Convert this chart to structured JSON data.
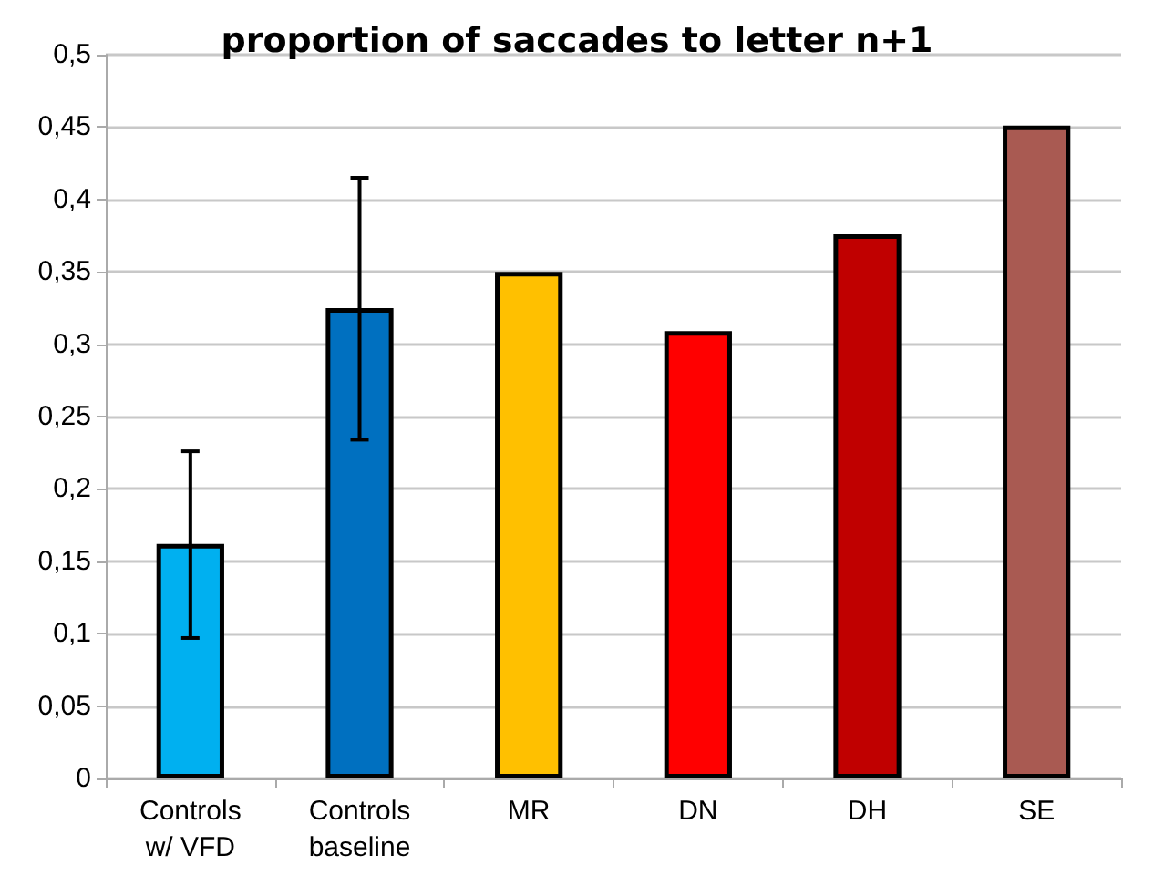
{
  "chart_data": {
    "type": "bar",
    "title": "proportion of saccades to letter n+1",
    "categories": [
      "Controls\nw/ VFD",
      "Controls\nbaseline",
      "MR",
      "DN",
      "DH",
      "SE"
    ],
    "values": [
      0.162,
      0.325,
      0.35,
      0.309,
      0.376,
      0.451
    ],
    "colors": [
      "#00b0f0",
      "#0070c0",
      "#ffc000",
      "#ff0000",
      "#c00000",
      "#a95a52"
    ],
    "errors": [
      [
        0.097,
        0.226
      ],
      [
        0.234,
        0.415
      ],
      null,
      null,
      null,
      null
    ],
    "ylim": [
      0,
      0.5
    ],
    "yticks": [
      {
        "value": 0,
        "label": "0"
      },
      {
        "value": 0.05,
        "label": "0,05"
      },
      {
        "value": 0.1,
        "label": "0,1"
      },
      {
        "value": 0.15,
        "label": "0,15"
      },
      {
        "value": 0.2,
        "label": "0,2"
      },
      {
        "value": 0.25,
        "label": "0,25"
      },
      {
        "value": 0.3,
        "label": "0,3"
      },
      {
        "value": 0.35,
        "label": "0,35"
      },
      {
        "value": 0.4,
        "label": "0,4"
      },
      {
        "value": 0.45,
        "label": "0,45"
      },
      {
        "value": 0.5,
        "label": "0,5"
      }
    ],
    "grid": "y"
  }
}
